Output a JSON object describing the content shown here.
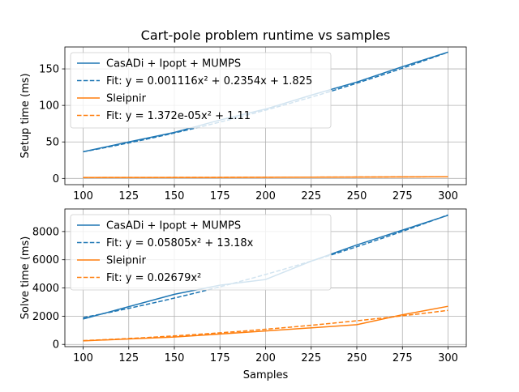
{
  "chart_data": {
    "type": "line",
    "title": "Cart-pole problem runtime vs samples",
    "colors": {
      "casadi": "#1f77b4",
      "sleipnir": "#ff7f0e",
      "grid": "#b0b0b0"
    },
    "subplots": [
      {
        "ylabel": "Setup time (ms)",
        "xlim": [
          90,
          310
        ],
        "ylim": [
          -8.5,
          180
        ],
        "xticks": [
          100,
          125,
          150,
          175,
          200,
          225,
          250,
          275,
          300
        ],
        "yticks": [
          0,
          50,
          100,
          150
        ],
        "grid": true,
        "legend_position": "upper-left",
        "series": [
          {
            "name": "CasADi + Ipopt + MUMPS",
            "color": "casadi",
            "style": "solid",
            "x": [
              100,
              125,
              150,
              175,
              200,
              225,
              250,
              275,
              300
            ],
            "y": [
              36.5,
              50,
              63,
              80,
              95,
              114,
              132,
              153,
              173
            ]
          },
          {
            "name": "Fit: y = 0.001116x² + 0.2354x + 1.825",
            "color": "casadi",
            "style": "dashed",
            "fit": {
              "a": 0.001116,
              "b": 0.2354,
              "c": 1.825
            }
          },
          {
            "name": "Sleipnir",
            "color": "sleipnir",
            "style": "solid",
            "x": [
              100,
              150,
              200,
              250,
              300
            ],
            "y": [
              1.4,
              1.3,
              1.6,
              1.9,
              2.3
            ]
          },
          {
            "name": "Fit: y = 1.372e-05x² + 1.11",
            "color": "sleipnir",
            "style": "dashed",
            "fit": {
              "a": 1.372e-05,
              "b": 0,
              "c": 1.11
            }
          }
        ]
      },
      {
        "ylabel": "Solve time (ms)",
        "xlabel": "Samples",
        "xlim": [
          90,
          310
        ],
        "ylim": [
          -160,
          9600
        ],
        "xticks": [
          100,
          125,
          150,
          175,
          200,
          225,
          250,
          275,
          300
        ],
        "yticks": [
          0,
          2000,
          4000,
          6000,
          8000
        ],
        "grid": true,
        "legend_position": "upper-left",
        "series": [
          {
            "name": "CasADi + Ipopt + MUMPS",
            "color": "casadi",
            "style": "solid",
            "x": [
              100,
              150,
              175,
              200,
              225,
              250,
              275,
              300
            ],
            "y": [
              1800,
              3550,
              4200,
              4600,
              5900,
              7050,
              8100,
              9150
            ]
          },
          {
            "name": "Fit: y = 0.05805x² + 13.18x",
            "color": "casadi",
            "style": "dashed",
            "fit": {
              "a": 0.05805,
              "b": 13.18,
              "c": 0
            }
          },
          {
            "name": "Sleipnir",
            "color": "sleipnir",
            "style": "solid",
            "x": [
              100,
              150,
              200,
              250,
              275,
              300
            ],
            "y": [
              250,
              520,
              950,
              1400,
              2100,
              2700
            ]
          },
          {
            "name": "Fit: y = 0.02679x²",
            "color": "sleipnir",
            "style": "dashed",
            "fit": {
              "a": 0.02679,
              "b": 0,
              "c": 0
            }
          }
        ]
      }
    ]
  }
}
